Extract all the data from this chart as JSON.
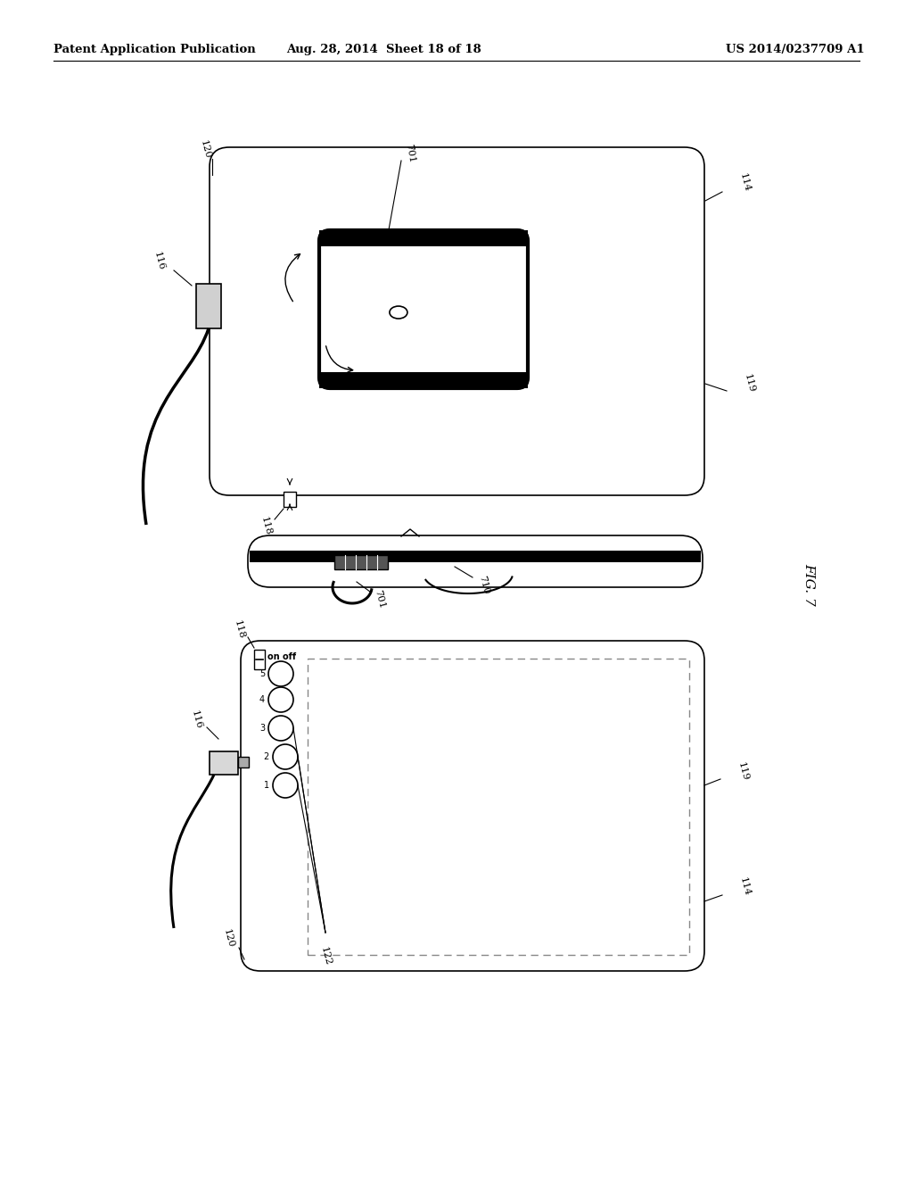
{
  "bg_color": "#ffffff",
  "header_left": "Patent Application Publication",
  "header_center": "Aug. 28, 2014  Sheet 18 of 18",
  "header_right": "US 2014/0237709 A1",
  "fig_label": "FIG. 7"
}
